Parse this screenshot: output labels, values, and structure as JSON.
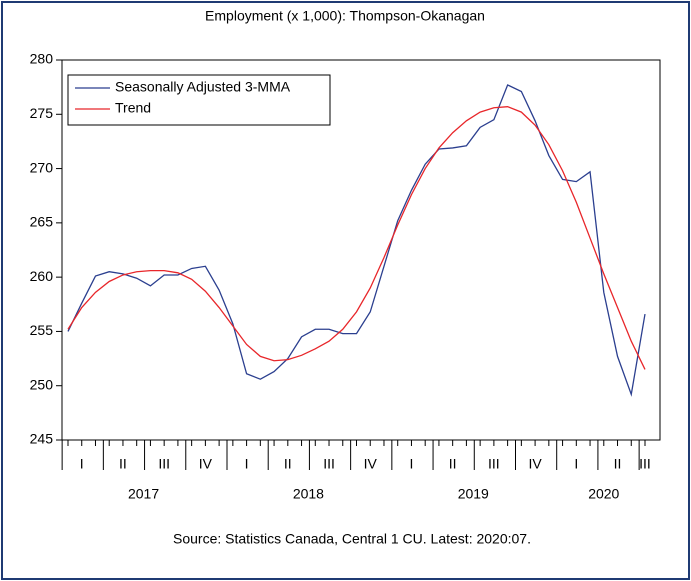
{
  "chart_data": {
    "type": "line",
    "title": "Employment (x 1,000): Thompson-Okanagan",
    "source": "Source:  Statistics Canada, Central 1 CU. Latest: 2020:07.",
    "categories": [
      null,
      "I",
      null,
      null,
      "II",
      null,
      null,
      "III",
      null,
      null,
      "IV",
      null,
      null,
      "I",
      null,
      null,
      "II",
      null,
      null,
      "III",
      null,
      null,
      "IV",
      null,
      null,
      "I",
      null,
      null,
      "II",
      null,
      null,
      "III",
      null,
      null,
      "IV",
      null,
      null,
      "I",
      null,
      null,
      "II",
      null,
      "III"
    ],
    "years": [
      "2017",
      "2018",
      "2019",
      "2020"
    ],
    "ylim": [
      245,
      280
    ],
    "yticks": [
      245,
      250,
      255,
      260,
      265,
      270,
      275,
      280
    ],
    "legend": "upper left",
    "series": [
      {
        "name": "Seasonally Adjusted 3-MMA",
        "color": "#2b3f8f",
        "values": [
          255.0,
          257.6,
          260.1,
          260.5,
          260.3,
          259.9,
          259.2,
          260.2,
          260.2,
          260.8,
          261.0,
          258.8,
          255.7,
          251.1,
          250.6,
          251.3,
          252.5,
          254.5,
          255.2,
          255.2,
          254.8,
          254.8,
          256.8,
          261.0,
          265.2,
          268.0,
          270.4,
          271.8,
          271.9,
          272.1,
          273.8,
          274.5,
          277.7,
          277.1,
          274.4,
          271.2,
          269.0,
          268.8,
          269.7,
          258.6,
          252.7,
          249.2,
          256.6
        ]
      },
      {
        "name": "Trend",
        "color": "#e8262a",
        "values": [
          255.2,
          257.2,
          258.6,
          259.6,
          260.2,
          260.5,
          260.6,
          260.6,
          260.4,
          259.8,
          258.7,
          257.2,
          255.5,
          253.8,
          252.7,
          252.3,
          252.4,
          252.8,
          253.4,
          254.1,
          255.2,
          256.8,
          259.0,
          261.8,
          264.8,
          267.6,
          270.0,
          271.9,
          273.3,
          274.4,
          275.2,
          275.6,
          275.7,
          275.2,
          274.0,
          272.2,
          269.8,
          266.9,
          263.6,
          260.3,
          257.2,
          254.1,
          251.5
        ]
      }
    ]
  }
}
